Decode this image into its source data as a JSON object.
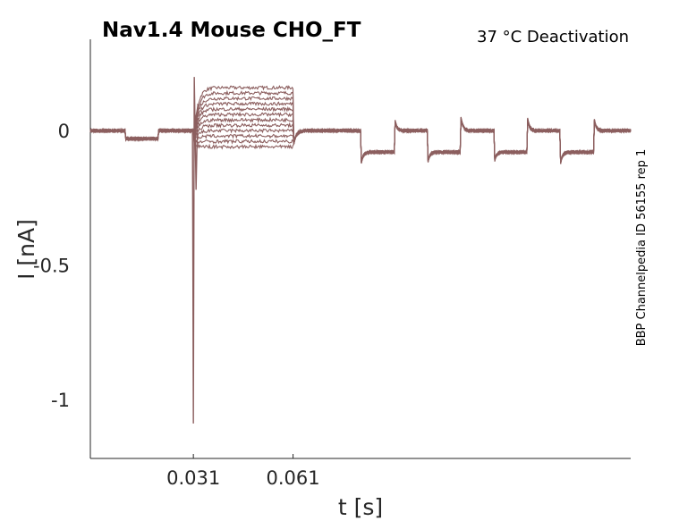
{
  "chart_data": {
    "type": "line",
    "title": "Nav1.4  Mouse  CHO_FT",
    "subtitle": "37 °C  Deactivation",
    "side_label": "BBP Channelpedia ID 56155 rep 1",
    "xlabel": "t [s]",
    "ylabel": "I [nA]",
    "xlim": [
      0.0,
      0.1626
    ],
    "ylim": [
      -1.22,
      0.34
    ],
    "x_ticks": [
      0.031,
      0.061
    ],
    "x_tick_labels": [
      "0.031",
      "0.061"
    ],
    "y_ticks": [
      0,
      -0.5,
      -1
    ],
    "y_tick_labels": [
      "0",
      "-0.5",
      "-1"
    ],
    "grid": false,
    "line_color": "#8c5f5f",
    "protocol": {
      "baseline": 0.0,
      "prepulse_dip": {
        "start": 0.0105,
        "end": 0.0205,
        "level": -0.03
      },
      "peak_transient": {
        "time": 0.031,
        "value": -1.09
      },
      "step_window": [
        0.031,
        0.061
      ],
      "step_levels": [
        0.16,
        0.14,
        0.12,
        0.1,
        0.08,
        0.06,
        0.04,
        0.02,
        0.0,
        -0.02,
        -0.04,
        -0.06
      ],
      "test_pulses": [
        {
          "start": 0.0815,
          "end": 0.0915,
          "level": -0.08
        },
        {
          "start": 0.1015,
          "end": 0.1115,
          "level": -0.08
        },
        {
          "start": 0.1215,
          "end": 0.1315,
          "level": -0.08
        },
        {
          "start": 0.1415,
          "end": 0.1515,
          "level": -0.08
        }
      ]
    }
  }
}
